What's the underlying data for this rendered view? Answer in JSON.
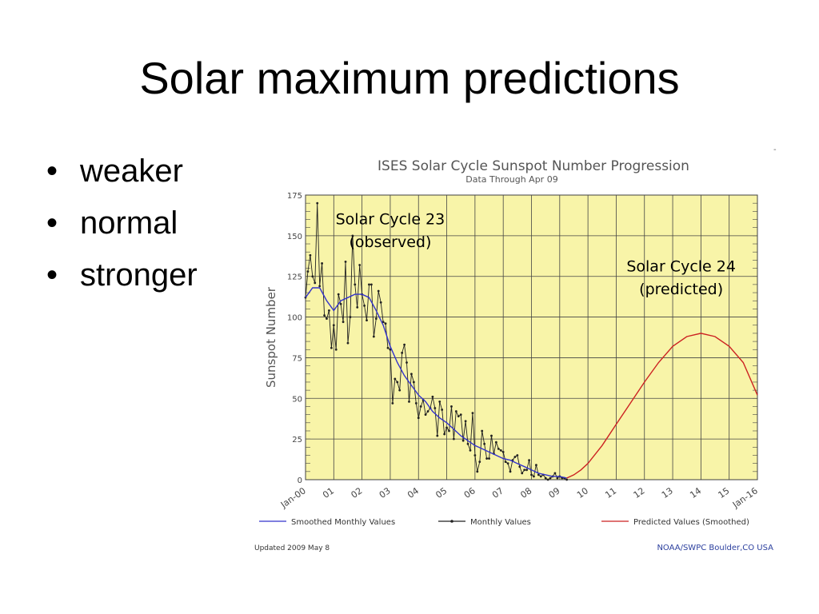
{
  "slide": {
    "title": "Solar maximum predictions",
    "bullets": [
      {
        "label": "weaker"
      },
      {
        "label": "normal"
      },
      {
        "label": "stronger"
      }
    ]
  },
  "figure": {
    "updated": "Updated 2009 May  8",
    "credit": "NOAA/SWPC Boulder,CO USA",
    "corner_mark": "-"
  },
  "chart_data": {
    "type": "line",
    "title": "ISES Solar Cycle Sunspot Number Progression",
    "subtitle": "Data Through Apr 09",
    "xlabel": "",
    "ylabel": "Sunspot Number",
    "ylim": [
      0,
      175
    ],
    "xlim": [
      2000.0,
      2016.0
    ],
    "grid": true,
    "background": "#f8f4a8",
    "y_ticks": [
      "0",
      "25",
      "50",
      "75",
      "100",
      "125",
      "150",
      "175"
    ],
    "x_ticks": [
      {
        "value": 2000,
        "label": "Jan-00"
      },
      {
        "value": 2001,
        "label": "01"
      },
      {
        "value": 2002,
        "label": "02"
      },
      {
        "value": 2003,
        "label": "03"
      },
      {
        "value": 2004,
        "label": "04"
      },
      {
        "value": 2005,
        "label": "05"
      },
      {
        "value": 2006,
        "label": "06"
      },
      {
        "value": 2007,
        "label": "07"
      },
      {
        "value": 2008,
        "label": "08"
      },
      {
        "value": 2009,
        "label": "09"
      },
      {
        "value": 2010,
        "label": "10"
      },
      {
        "value": 2011,
        "label": "11"
      },
      {
        "value": 2012,
        "label": "12"
      },
      {
        "value": 2013,
        "label": "13"
      },
      {
        "value": 2014,
        "label": "14"
      },
      {
        "value": 2015,
        "label": "15"
      },
      {
        "value": 2016,
        "label": "Jan-16"
      }
    ],
    "annotations": [
      {
        "text": "Solar Cycle 23",
        "x": 2003.0,
        "y": 157
      },
      {
        "text": "(observed)",
        "x": 2003.0,
        "y": 143
      },
      {
        "text": "Solar Cycle 24",
        "x": 2013.3,
        "y": 128
      },
      {
        "text": "(predicted)",
        "x": 2013.3,
        "y": 114
      }
    ],
    "legend": {
      "placement": "bottom",
      "entries": [
        {
          "label": "Smoothed Monthly Values",
          "color": "#3333cc",
          "style": "line"
        },
        {
          "label": "Monthly Values",
          "color": "#222222",
          "style": "line-marker"
        },
        {
          "label": "Predicted Values (Smoothed)",
          "color": "#cc2222",
          "style": "line"
        }
      ]
    },
    "series": [
      {
        "name": "Monthly Values",
        "color": "#222222",
        "x": [
          2000.0,
          2000.083,
          2000.167,
          2000.25,
          2000.333,
          2000.417,
          2000.5,
          2000.583,
          2000.667,
          2000.75,
          2000.833,
          2000.917,
          2001.0,
          2001.083,
          2001.167,
          2001.25,
          2001.333,
          2001.417,
          2001.5,
          2001.583,
          2001.667,
          2001.75,
          2001.833,
          2001.917,
          2002.0,
          2002.083,
          2002.167,
          2002.25,
          2002.333,
          2002.417,
          2002.5,
          2002.583,
          2002.667,
          2002.75,
          2002.833,
          2002.917,
          2003.0,
          2003.083,
          2003.167,
          2003.25,
          2003.333,
          2003.417,
          2003.5,
          2003.583,
          2003.667,
          2003.75,
          2003.833,
          2003.917,
          2004.0,
          2004.083,
          2004.167,
          2004.25,
          2004.333,
          2004.417,
          2004.5,
          2004.583,
          2004.667,
          2004.75,
          2004.833,
          2004.917,
          2005.0,
          2005.083,
          2005.167,
          2005.25,
          2005.333,
          2005.417,
          2005.5,
          2005.583,
          2005.667,
          2005.75,
          2005.833,
          2005.917,
          2006.0,
          2006.083,
          2006.167,
          2006.25,
          2006.333,
          2006.417,
          2006.5,
          2006.583,
          2006.667,
          2006.75,
          2006.833,
          2006.917,
          2007.0,
          2007.083,
          2007.167,
          2007.25,
          2007.333,
          2007.417,
          2007.5,
          2007.583,
          2007.667,
          2007.75,
          2007.833,
          2007.917,
          2008.0,
          2008.083,
          2008.167,
          2008.25,
          2008.333,
          2008.417,
          2008.5,
          2008.583,
          2008.667,
          2008.75,
          2008.833,
          2008.917,
          2009.0,
          2009.083,
          2009.167,
          2009.25
        ],
        "values": [
          112,
          128,
          138,
          125,
          121,
          170,
          119,
          133,
          101,
          99,
          104,
          81,
          95,
          80,
          114,
          108,
          97,
          134,
          84,
          100,
          150,
          120,
          106,
          132,
          114,
          107,
          98,
          120,
          120,
          88,
          99,
          116,
          109,
          97,
          96,
          81,
          80,
          47,
          62,
          60,
          55,
          78,
          83,
          72,
          48,
          65,
          60,
          47,
          38,
          45,
          49,
          40,
          42,
          44,
          51,
          44,
          27,
          48,
          43,
          28,
          32,
          30,
          45,
          25,
          42,
          39,
          40,
          24,
          36,
          22,
          18,
          41,
          15,
          5,
          11,
          30,
          22,
          13,
          13,
          27,
          16,
          23,
          19,
          18,
          17,
          11,
          10,
          5,
          12,
          14,
          15,
          8,
          4,
          6,
          6,
          12,
          3,
          2,
          9,
          3,
          2,
          3,
          1,
          0,
          1,
          2,
          4,
          1,
          2,
          1,
          1,
          0
        ]
      },
      {
        "name": "Smoothed Monthly Values",
        "color": "#3333cc",
        "x": [
          2000.0,
          2000.25,
          2000.5,
          2000.75,
          2001.0,
          2001.25,
          2001.5,
          2001.75,
          2002.0,
          2002.25,
          2002.5,
          2002.75,
          2003.0,
          2003.25,
          2003.5,
          2003.75,
          2004.0,
          2004.25,
          2004.5,
          2004.75,
          2005.0,
          2005.25,
          2005.5,
          2005.75,
          2006.0,
          2006.25,
          2006.5,
          2006.75,
          2007.0,
          2007.25,
          2007.5,
          2007.75,
          2008.0,
          2008.25,
          2008.5,
          2008.75,
          2009.0,
          2009.25
        ],
        "values": [
          112,
          118,
          118,
          110,
          104,
          110,
          112,
          114,
          114,
          112,
          104,
          95,
          82,
          72,
          64,
          58,
          52,
          48,
          42,
          38,
          35,
          31,
          27,
          24,
          21,
          19,
          17,
          15,
          13,
          12,
          10,
          8,
          6,
          4,
          3,
          2,
          2,
          1
        ]
      },
      {
        "name": "Predicted Values (Smoothed)",
        "color": "#cc2222",
        "x": [
          2009.25,
          2009.5,
          2009.75,
          2010.0,
          2010.5,
          2011.0,
          2011.5,
          2012.0,
          2012.5,
          2013.0,
          2013.5,
          2014.0,
          2014.5,
          2015.0,
          2015.5,
          2016.0
        ],
        "values": [
          1,
          3,
          6,
          10,
          21,
          34,
          47,
          60,
          72,
          82,
          88,
          90,
          88,
          82,
          72,
          52
        ]
      }
    ]
  }
}
